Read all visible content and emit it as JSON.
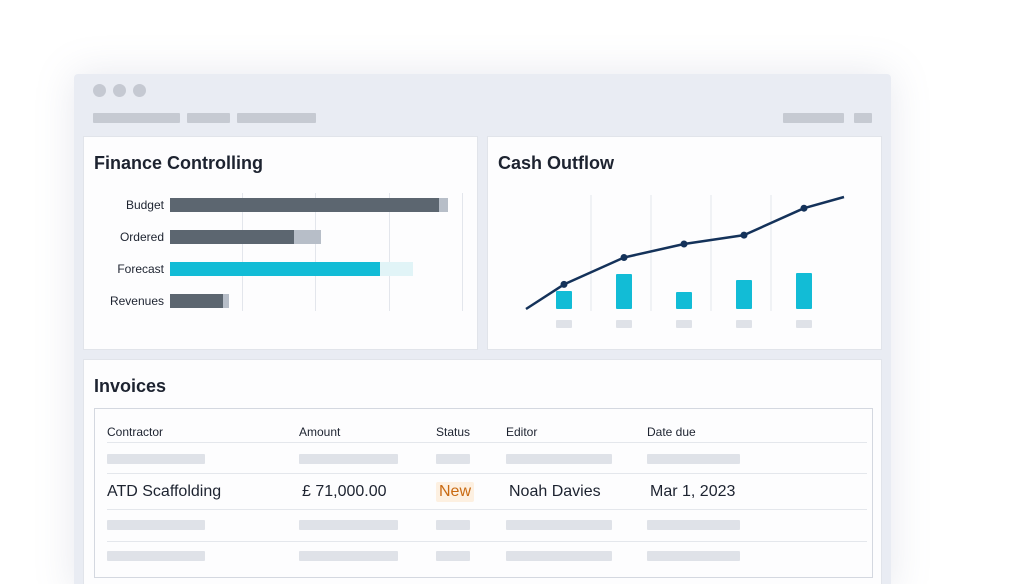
{
  "finance": {
    "title": "Finance Controlling",
    "rows": [
      {
        "label": "Budget",
        "actual": 0.91,
        "target": 0.94,
        "color": "#5c6670",
        "bg": "#b7bec8"
      },
      {
        "label": "Ordered",
        "actual": 0.42,
        "target": 0.51,
        "color": "#5c6670",
        "bg": "#b7bec8"
      },
      {
        "label": "Forecast",
        "actual": 0.71,
        "target": 0.82,
        "color": "#12bcd6",
        "bg": "#e1f4f7"
      },
      {
        "label": "Revenues",
        "actual": 0.18,
        "target": 0.2,
        "color": "#5c6670",
        "bg": "#b7bec8"
      }
    ]
  },
  "cash": {
    "title": "Cash Outflow",
    "line_color": "#14325a",
    "bar_color": "#12bcd6",
    "line": [
      0.0,
      0.22,
      0.46,
      0.58,
      0.66,
      0.9,
      1.0
    ],
    "bars": [
      0.45,
      0.85,
      0.42,
      0.7,
      0.88
    ]
  },
  "invoices": {
    "title": "Invoices",
    "columns": {
      "contractor": "Contractor",
      "amount": "Amount",
      "status": "Status",
      "editor": "Editor",
      "date_due": "Date due"
    },
    "row": {
      "contractor": "ATD Scaffolding",
      "amount": "£ 71,000.00",
      "status": "New",
      "editor": "Noah Davies",
      "date_due": "Mar 1, 2023"
    }
  }
}
